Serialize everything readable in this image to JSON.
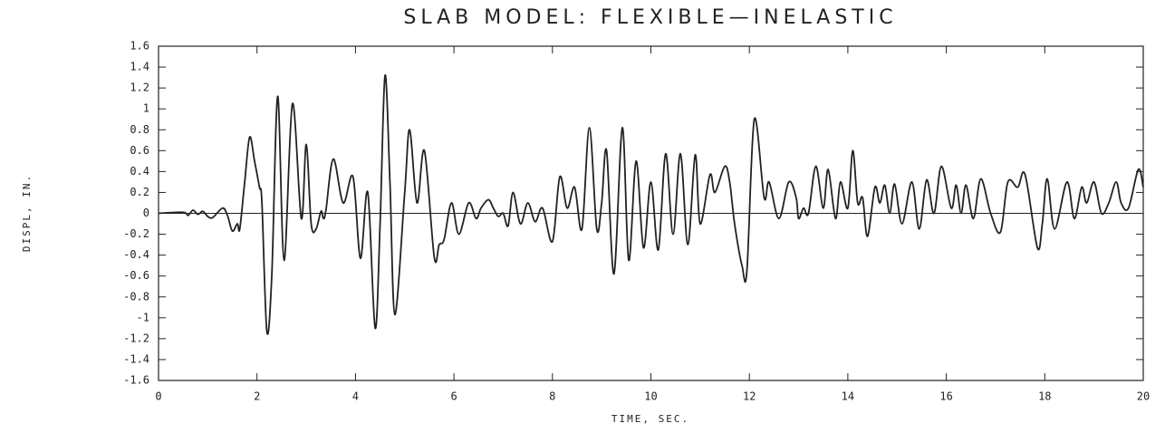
{
  "chart_data": {
    "type": "line",
    "title": "SLAB MODEL: FLEXIBLE—INELASTIC",
    "x_label": "TIME, SEC.",
    "y_label": "DISPL, IN.",
    "xlim": [
      0,
      20
    ],
    "xticks": [
      0,
      2,
      4,
      6,
      8,
      10,
      12,
      14,
      16,
      18,
      20
    ],
    "ylim": [
      -1.6,
      1.6
    ],
    "yticks": [
      1.6,
      1.4,
      1.2,
      1,
      0.8,
      0.6,
      0.4,
      0.2,
      0,
      -0.2,
      -0.4,
      -0.6,
      -0.8,
      -1,
      -1.2,
      -1.4,
      -1.6
    ],
    "zero_line": true,
    "series": [
      {
        "color": "#222222",
        "x": [
          0,
          0.5,
          0.6,
          0.7,
          0.8,
          0.9,
          1.0,
          1.1,
          1.3,
          1.4,
          1.5,
          1.6,
          1.65,
          1.75,
          1.85,
          1.95,
          2.05,
          2.1,
          2.2,
          2.3,
          2.42,
          2.55,
          2.72,
          2.9,
          3.0,
          3.1,
          3.2,
          3.3,
          3.35,
          3.4,
          3.55,
          3.75,
          3.95,
          4.1,
          4.25,
          4.4,
          4.5,
          4.6,
          4.7,
          4.8,
          5.0,
          5.1,
          5.25,
          5.4,
          5.6,
          5.7,
          5.8,
          5.95,
          6.1,
          6.3,
          6.45,
          6.55,
          6.7,
          6.8,
          6.9,
          7.0,
          7.1,
          7.2,
          7.35,
          7.5,
          7.65,
          7.8,
          8.0,
          8.15,
          8.3,
          8.45,
          8.6,
          8.75,
          8.9,
          9.0,
          9.1,
          9.25,
          9.42,
          9.55,
          9.7,
          9.85,
          10.0,
          10.15,
          10.3,
          10.45,
          10.6,
          10.75,
          10.9,
          11.0,
          11.2,
          11.3,
          11.5,
          11.6,
          11.7,
          11.85,
          11.95,
          12.1,
          12.3,
          12.4,
          12.6,
          12.8,
          12.95,
          13.0,
          13.1,
          13.2,
          13.35,
          13.5,
          13.6,
          13.75,
          13.85,
          14.0,
          14.1,
          14.2,
          14.3,
          14.4,
          14.55,
          14.65,
          14.75,
          14.85,
          14.95,
          15.1,
          15.3,
          15.45,
          15.6,
          15.75,
          15.9,
          16.1,
          16.2,
          16.3,
          16.4,
          16.55,
          16.7,
          16.9,
          17.1,
          17.25,
          17.45,
          17.6,
          17.85,
          17.95,
          18.05,
          18.2,
          18.45,
          18.6,
          18.75,
          18.85,
          19.0,
          19.15,
          19.3,
          19.45,
          19.55,
          19.7,
          19.9,
          20.0
        ],
        "values": [
          0,
          0.01,
          -0.02,
          0.03,
          -0.01,
          0.02,
          -0.03,
          -0.04,
          0.05,
          -0.02,
          -0.17,
          -0.1,
          -0.15,
          0.3,
          0.73,
          0.5,
          0.25,
          0.1,
          -1.13,
          -0.6,
          1.12,
          -0.45,
          1.05,
          -0.05,
          0.66,
          -0.1,
          -0.15,
          0.02,
          -0.05,
          0.03,
          0.52,
          0.1,
          0.35,
          -0.43,
          0.2,
          -1.1,
          -0.1,
          1.32,
          0.3,
          -0.97,
          0.2,
          0.8,
          0.1,
          0.6,
          -0.42,
          -0.3,
          -0.25,
          0.1,
          -0.2,
          0.1,
          -0.05,
          0.05,
          0.13,
          0.05,
          -0.03,
          0,
          -0.12,
          0.2,
          -0.1,
          0.1,
          -0.08,
          0.05,
          -0.27,
          0.35,
          0.05,
          0.25,
          -0.15,
          0.82,
          -0.15,
          0.1,
          0.6,
          -0.58,
          0.82,
          -0.45,
          0.5,
          -0.33,
          0.3,
          -0.35,
          0.57,
          -0.2,
          0.57,
          -0.3,
          0.56,
          -0.1,
          0.37,
          0.2,
          0.45,
          0.3,
          -0.1,
          -0.5,
          -0.55,
          0.9,
          0.15,
          0.3,
          -0.05,
          0.3,
          0.15,
          -0.05,
          0.05,
          0,
          0.45,
          0.05,
          0.42,
          -0.05,
          0.3,
          0.05,
          0.6,
          0.1,
          0.15,
          -0.22,
          0.25,
          0.1,
          0.27,
          0,
          0.28,
          -0.1,
          0.3,
          -0.15,
          0.32,
          0,
          0.45,
          0.05,
          0.27,
          0,
          0.27,
          -0.05,
          0.33,
          0,
          -0.18,
          0.3,
          0.25,
          0.37,
          -0.33,
          -0.1,
          0.33,
          -0.15,
          0.3,
          -0.05,
          0.25,
          0.1,
          0.3,
          0,
          0.1,
          0.3,
          0.1,
          0.05,
          0.42,
          0.25
        ]
      }
    ]
  }
}
